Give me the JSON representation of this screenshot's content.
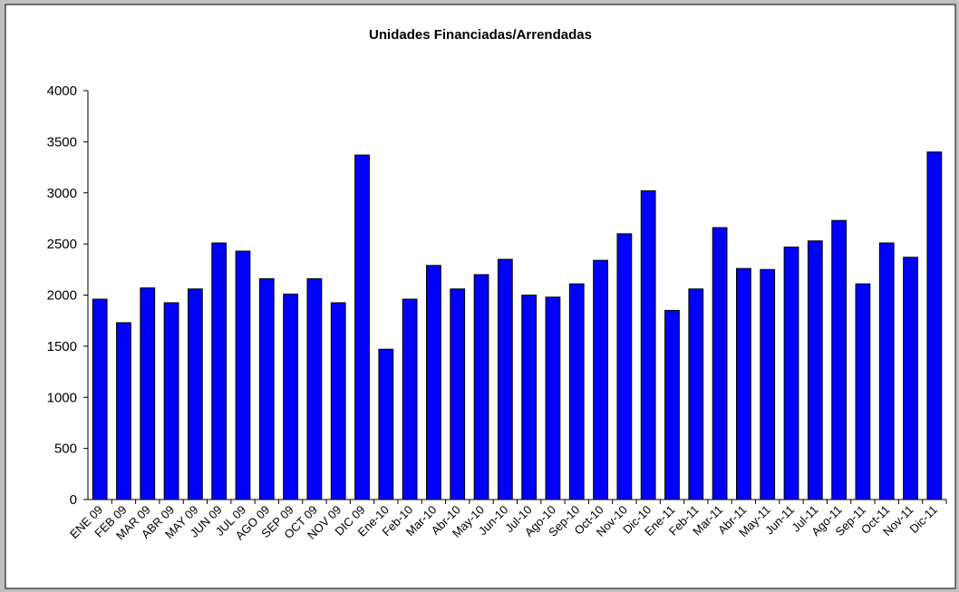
{
  "chart_data": {
    "type": "bar",
    "title": "Unidades Financiadas/Arrendadas",
    "categories": [
      "ENE 09",
      "FEB 09",
      "MAR 09",
      "ABR 09",
      "MAY 09",
      "JUN 09",
      "JUL 09",
      "AGO 09",
      "SEP 09",
      "OCT 09",
      "NOV 09",
      "DIC 09",
      "Ene-10",
      "Feb-10",
      "Mar-10",
      "Abr-10",
      "May-10",
      "Jun-10",
      "Jul-10",
      "Ago-10",
      "Sep-10",
      "Oct-10",
      "Nov-10",
      "Dic-10",
      "Ene-11",
      "Feb-11",
      "Mar-11",
      "Abr-11",
      "May-11",
      "Jun-11",
      "Jul-11",
      "Ago-11",
      "Sep-11",
      "Oct-11",
      "Nov-11",
      "Dic-11"
    ],
    "values": [
      1960,
      1730,
      2070,
      1925,
      2060,
      2510,
      2430,
      2160,
      2010,
      2160,
      1925,
      3370,
      1470,
      1960,
      2290,
      2060,
      2200,
      2350,
      2000,
      1980,
      2110,
      2340,
      2600,
      3020,
      1850,
      2060,
      2660,
      2260,
      2250,
      2470,
      2530,
      2730,
      2110,
      2510,
      2370,
      3400
    ],
    "color": "#0000ff",
    "ylim": [
      0,
      4000
    ],
    "yticks": [
      0,
      500,
      1000,
      1500,
      2000,
      2500,
      3000,
      3500,
      4000
    ],
    "grid": false
  }
}
